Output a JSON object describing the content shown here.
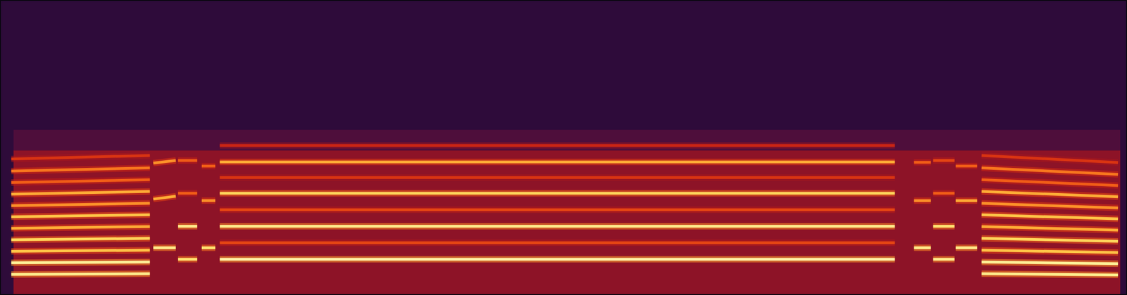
{
  "chart_data": {
    "type": "spectrogram",
    "tick_labels": false,
    "xlim": [
      0,
      100
    ],
    "ylim": [
      0,
      100
    ],
    "zlim": [
      0,
      1
    ],
    "cells": [
      {
        "x": [
          0,
          100
        ],
        "y": [
          0,
          100
        ],
        "value": 0.08
      },
      {
        "x": [
          1.2,
          99.4
        ],
        "y": [
          49,
          56
        ],
        "value": 0.17
      },
      {
        "x": [
          1.2,
          99.4
        ],
        "y": [
          0,
          49
        ],
        "value": 0.3
      }
    ],
    "series": [
      {
        "x": [
          1.0,
          13.3
        ],
        "values": [
          7.0,
          7.2
        ],
        "level": 0.95
      },
      {
        "x": [
          1.0,
          13.3
        ],
        "values": [
          10.9,
          11.2
        ],
        "level": 0.97
      },
      {
        "x": [
          1.0,
          13.3
        ],
        "values": [
          14.8,
          15.2
        ],
        "level": 0.8
      },
      {
        "x": [
          1.0,
          13.3
        ],
        "values": [
          18.7,
          19.2
        ],
        "level": 0.85
      },
      {
        "x": [
          1.0,
          13.3
        ],
        "values": [
          22.6,
          23.2
        ],
        "level": 0.75
      },
      {
        "x": [
          1.0,
          13.3
        ],
        "values": [
          26.5,
          27.2
        ],
        "level": 0.8
      },
      {
        "x": [
          1.0,
          13.3
        ],
        "values": [
          30.3,
          31.1
        ],
        "level": 0.7
      },
      {
        "x": [
          1.0,
          13.3
        ],
        "values": [
          34.2,
          35.1
        ],
        "level": 0.75
      },
      {
        "x": [
          1.0,
          13.3
        ],
        "values": [
          38.1,
          39.1
        ],
        "level": 0.6
      },
      {
        "x": [
          1.0,
          13.3
        ],
        "values": [
          42.0,
          43.1
        ],
        "level": 0.65
      },
      {
        "x": [
          1.0,
          13.3
        ],
        "values": [
          46.1,
          47.3
        ],
        "level": 0.5
      },
      {
        "x": [
          13.6,
          15.6
        ],
        "values": [
          16.0,
          16.0
        ],
        "level": 0.95
      },
      {
        "x": [
          13.6,
          15.6
        ],
        "values": [
          32.5,
          33.5
        ],
        "level": 0.75
      },
      {
        "x": [
          13.6,
          15.6
        ],
        "values": [
          44.7,
          45.6
        ],
        "level": 0.7
      },
      {
        "x": [
          15.8,
          17.5
        ],
        "values": [
          12.1,
          12.1
        ],
        "level": 0.9
      },
      {
        "x": [
          15.8,
          17.5
        ],
        "values": [
          23.3,
          23.3
        ],
        "level": 0.95
      },
      {
        "x": [
          15.8,
          17.5
        ],
        "values": [
          34.5,
          34.5
        ],
        "level": 0.6
      },
      {
        "x": [
          15.8,
          17.5
        ],
        "values": [
          45.6,
          45.6
        ],
        "level": 0.6
      },
      {
        "x": [
          17.9,
          19.1
        ],
        "values": [
          16.0,
          16.0
        ],
        "level": 0.9
      },
      {
        "x": [
          17.9,
          19.1
        ],
        "values": [
          32.0,
          32.0
        ],
        "level": 0.7
      },
      {
        "x": [
          17.9,
          19.1
        ],
        "values": [
          43.7,
          43.7
        ],
        "level": 0.6
      },
      {
        "x": [
          19.5,
          79.4
        ],
        "values": [
          12.1,
          12.1
        ],
        "level": 1.0
      },
      {
        "x": [
          19.5,
          79.4
        ],
        "values": [
          17.7,
          17.7
        ],
        "level": 0.55
      },
      {
        "x": [
          19.5,
          79.4
        ],
        "values": [
          23.3,
          23.3
        ],
        "level": 0.95
      },
      {
        "x": [
          19.5,
          79.4
        ],
        "values": [
          28.9,
          28.9
        ],
        "level": 0.55
      },
      {
        "x": [
          19.5,
          79.4
        ],
        "values": [
          34.5,
          34.5
        ],
        "level": 0.85
      },
      {
        "x": [
          19.5,
          79.4
        ],
        "values": [
          39.8,
          39.8
        ],
        "level": 0.5
      },
      {
        "x": [
          19.5,
          79.4
        ],
        "values": [
          45.1,
          45.1
        ],
        "level": 0.75
      },
      {
        "x": [
          19.5,
          79.4
        ],
        "values": [
          50.7,
          50.7
        ],
        "level": 0.45
      },
      {
        "x": [
          81.1,
          82.6
        ],
        "values": [
          16.0,
          16.0
        ],
        "level": 0.95
      },
      {
        "x": [
          81.1,
          82.6
        ],
        "values": [
          32.0,
          32.0
        ],
        "level": 0.7
      },
      {
        "x": [
          81.1,
          82.6
        ],
        "values": [
          45.0,
          45.0
        ],
        "level": 0.6
      },
      {
        "x": [
          82.8,
          84.7
        ],
        "values": [
          12.1,
          12.1
        ],
        "level": 0.95
      },
      {
        "x": [
          82.8,
          84.7
        ],
        "values": [
          23.3,
          23.3
        ],
        "level": 0.9
      },
      {
        "x": [
          82.8,
          84.7
        ],
        "values": [
          34.5,
          34.5
        ],
        "level": 0.6
      },
      {
        "x": [
          82.8,
          84.7
        ],
        "values": [
          45.6,
          45.6
        ],
        "level": 0.55
      },
      {
        "x": [
          84.8,
          86.7
        ],
        "values": [
          16.0,
          16.0
        ],
        "level": 0.95
      },
      {
        "x": [
          84.8,
          86.7
        ],
        "values": [
          32.0,
          32.0
        ],
        "level": 0.75
      },
      {
        "x": [
          84.8,
          86.7
        ],
        "values": [
          43.7,
          43.7
        ],
        "level": 0.6
      },
      {
        "x": [
          87.1,
          99.2
        ],
        "values": [
          7.2,
          6.8
        ],
        "level": 0.95
      },
      {
        "x": [
          87.1,
          99.2
        ],
        "values": [
          11.2,
          10.6
        ],
        "level": 0.97
      },
      {
        "x": [
          87.1,
          99.2
        ],
        "values": [
          15.2,
          14.4
        ],
        "level": 0.8
      },
      {
        "x": [
          87.1,
          99.2
        ],
        "values": [
          19.2,
          18.2
        ],
        "level": 0.85
      },
      {
        "x": [
          87.1,
          99.2
        ],
        "values": [
          23.2,
          22.0
        ],
        "level": 0.75
      },
      {
        "x": [
          87.1,
          99.2
        ],
        "values": [
          27.2,
          25.8
        ],
        "level": 0.8
      },
      {
        "x": [
          87.1,
          99.2
        ],
        "values": [
          31.1,
          29.5
        ],
        "level": 0.7
      },
      {
        "x": [
          87.1,
          99.2
        ],
        "values": [
          35.1,
          33.3
        ],
        "level": 0.75
      },
      {
        "x": [
          87.1,
          99.2
        ],
        "values": [
          39.1,
          37.1
        ],
        "level": 0.6
      },
      {
        "x": [
          87.1,
          99.2
        ],
        "values": [
          43.1,
          40.9
        ],
        "level": 0.65
      },
      {
        "x": [
          87.1,
          99.2
        ],
        "values": [
          47.3,
          44.9
        ],
        "level": 0.5
      }
    ]
  }
}
